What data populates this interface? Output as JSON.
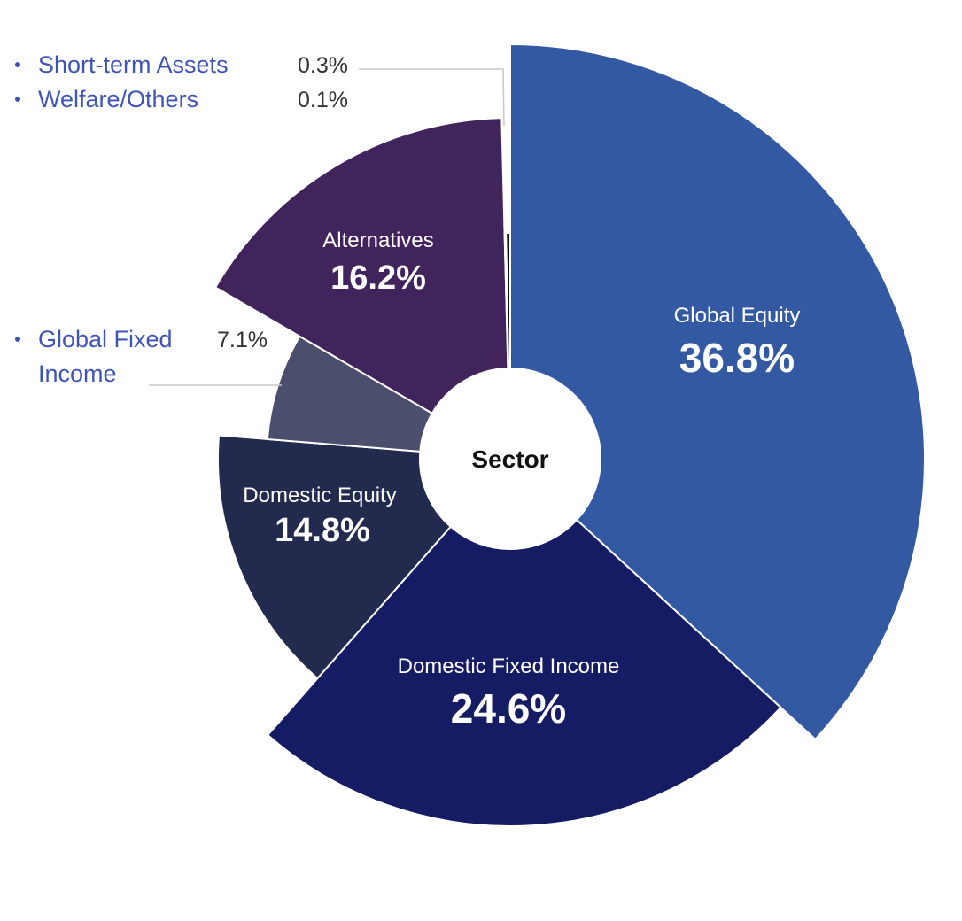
{
  "chart_data": {
    "type": "pie",
    "variant": "rose-donut",
    "center_label": "Sector",
    "series": [
      {
        "name": "Global Equity",
        "value": 36.8,
        "label": "36.8%",
        "color": "#3459a3",
        "label_position": "inside"
      },
      {
        "name": "Domestic Fixed Income",
        "value": 24.6,
        "label": "24.6%",
        "color": "#161c63",
        "label_position": "inside"
      },
      {
        "name": "Domestic Equity",
        "value": 14.8,
        "label": "14.8%",
        "color": "#222a4d",
        "label_position": "inside"
      },
      {
        "name": "Global Fixed Income",
        "value": 7.1,
        "label": "7.1%",
        "color": "#4b4e6d",
        "label_position": "outside"
      },
      {
        "name": "Alternatives",
        "value": 16.2,
        "label": "16.2%",
        "color": "#42245c",
        "label_position": "inside"
      },
      {
        "name": "Welfare/Others",
        "value": 0.1,
        "label": "0.1%",
        "color": "#d6d6d6",
        "label_position": "outside"
      },
      {
        "name": "Short-term Assets",
        "value": 0.3,
        "label": "0.3%",
        "color": "#111111",
        "label_position": "outside"
      }
    ],
    "external_labels": [
      {
        "lines": [
          "Short-term Assets"
        ],
        "value": "0.3%"
      },
      {
        "lines": [
          "Welfare/Others"
        ],
        "value": "0.1%"
      },
      {
        "lines": [
          "Global Fixed",
          "Income"
        ],
        "value": "7.1%"
      }
    ]
  }
}
